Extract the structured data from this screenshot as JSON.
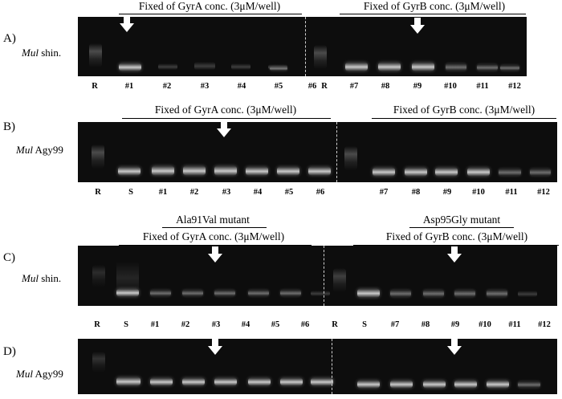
{
  "panels": [
    {
      "id": "A",
      "label": "A)",
      "species_italic": "Mul",
      "species_rest": " shin.",
      "left_groups": [],
      "right_groups": [],
      "left_title": "Fixed of GyrA conc. (3μM/well)",
      "right_title": "Fixed of GyrB conc. (3μM/well)",
      "lanes": [
        "R",
        "#1",
        "#2",
        "#3",
        "#4",
        "#5",
        "#6",
        "R",
        "#7",
        "#8",
        "#9",
        "#10",
        "#11",
        "#12"
      ]
    },
    {
      "id": "B",
      "label": "B)",
      "species_italic": "Mul",
      "species_rest": " Agy99",
      "left_title": "Fixed of GyrA conc. (3μM/well)",
      "right_title": "Fixed of GyrB conc. (3μM/well)",
      "lanes": [
        "R",
        "S",
        "#1",
        "#2",
        "#3",
        "#4",
        "#5",
        "#6",
        "#7",
        "#8",
        "#9",
        "#10",
        "#11",
        "#12"
      ]
    },
    {
      "id": "C",
      "label": "C)",
      "species_italic": "Mul",
      "species_rest": " shin.",
      "left_mutant": "Ala91Val mutant",
      "right_mutant": "Asp95Gly mutant",
      "left_title": "Fixed of GyrA conc. (3μM/well)",
      "right_title": "Fixed of GyrB conc. (3μM/well)",
      "lanes": [
        "R",
        "S",
        "#1",
        "#2",
        "#3",
        "#4",
        "#5",
        "#6",
        "R",
        "S",
        "#7",
        "#8",
        "#9",
        "#10",
        "#11",
        "#12"
      ]
    },
    {
      "id": "D",
      "label": "D)",
      "species_italic": "Mul",
      "species_rest": " Agy99"
    }
  ]
}
